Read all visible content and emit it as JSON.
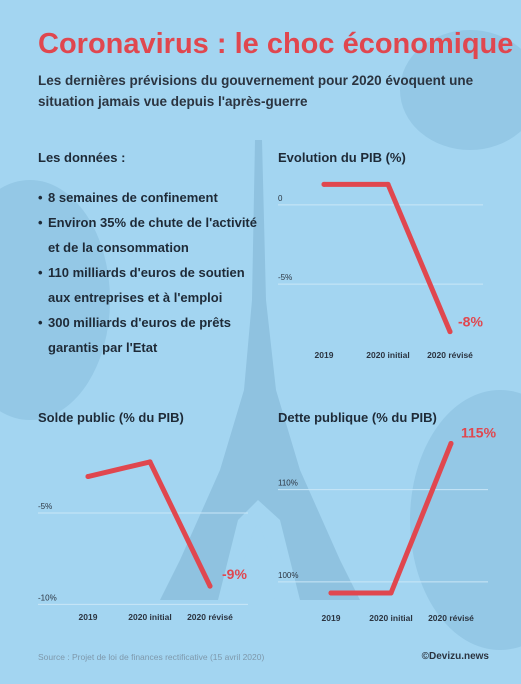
{
  "title": "Coronavirus : le choc économique",
  "subtitle": "Les dernières prévisions du gouvernement pour 2020 évoquent une situation jamais vue depuis l'après-guerre",
  "facts": {
    "heading": "Les données :",
    "bullet": "•",
    "items": [
      "8 semaines de confinement",
      "Environ 35% de chute de l'activité et de la consommation",
      "110 milliards d'euros de soutien aux entreprises et à l'emploi",
      "300 milliards d'euros de prêts garantis par l'Etat"
    ]
  },
  "colors": {
    "accent": "#e0474f",
    "background": "#a3d5f1",
    "text": "#1e2a37",
    "gridline": "#c9e6f7",
    "muted": "#7e98ab"
  },
  "footer": {
    "source": "Source : Projet de loi de finances rectificative (15 avril 2020)",
    "credit": "©Devizu.news"
  },
  "chart_data": [
    {
      "type": "line",
      "title": "Evolution du PIB (%)",
      "categories": [
        "2019",
        "2020 initial",
        "2020 révisé"
      ],
      "values": [
        1.3,
        1.3,
        -8
      ],
      "ylim": [
        -8.4,
        1.7
      ],
      "yticks": [
        0,
        -5
      ],
      "ytick_labels": [
        "0",
        "-5%"
      ],
      "end_label": "-8%",
      "grid": true
    },
    {
      "type": "line",
      "title": "Solde public (% du PIB)",
      "categories": [
        "2019",
        "2020 initial",
        "2020 révisé"
      ],
      "values": [
        -3.0,
        -2.2,
        -9
      ],
      "ylim": [
        -10.2,
        -1.0
      ],
      "yticks": [
        -5,
        -10
      ],
      "ytick_labels": [
        "-5%",
        "-10%"
      ],
      "end_label": "-9%",
      "grid": true
    },
    {
      "type": "line",
      "title": "Dette publique (% du PIB)",
      "categories": [
        "2019",
        "2020 initial",
        "2020 révisé"
      ],
      "values": [
        98.8,
        98.8,
        115
      ],
      "ylim": [
        97.5,
        117
      ],
      "yticks": [
        110,
        100
      ],
      "ytick_labels": [
        "110%",
        "100%"
      ],
      "end_label": "115%",
      "grid": true
    }
  ]
}
